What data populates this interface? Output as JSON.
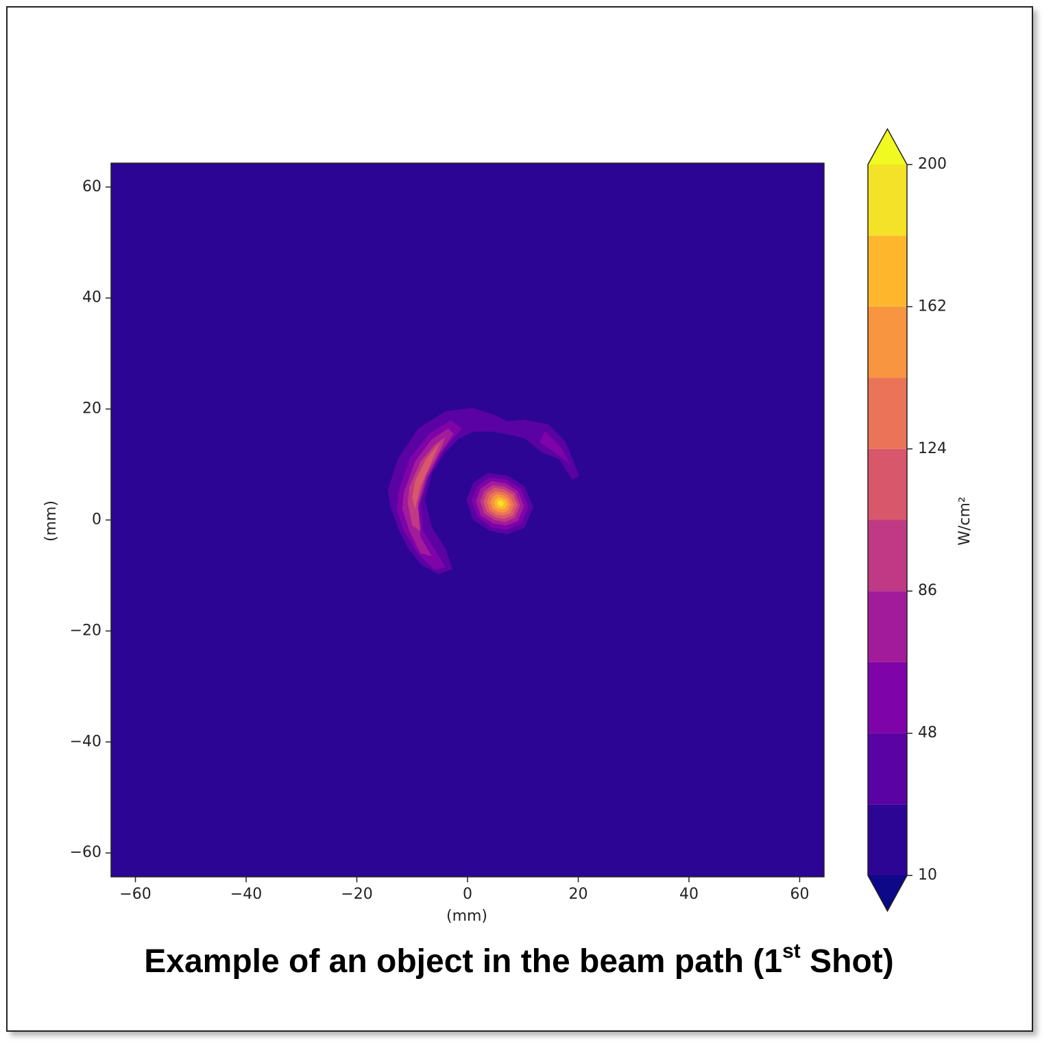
{
  "chart_data": {
    "type": "contour",
    "xlabel": "(mm)",
    "ylabel": "(mm)",
    "xlim": [
      -64.4,
      64.4
    ],
    "ylim": [
      -64.3,
      64.3
    ],
    "xticks": [
      {
        "value": -60,
        "label": "−60"
      },
      {
        "value": -40,
        "label": "−40"
      },
      {
        "value": -20,
        "label": "−20"
      },
      0,
      20,
      40,
      60
    ],
    "yticks": [
      {
        "value": -60,
        "label": "−60"
      },
      {
        "value": -40,
        "label": "−40"
      },
      {
        "value": -20,
        "label": "−20"
      },
      0,
      20,
      40,
      60
    ],
    "levels": [
      10,
      29,
      48,
      67,
      86,
      105,
      124,
      143,
      162,
      181,
      200
    ],
    "colors": [
      "#2c0594",
      "#5a02a3",
      "#7e03a8",
      "#a11b9b",
      "#bf3984",
      "#d8576b",
      "#ea7457",
      "#f89540",
      "#feb72d",
      "#f3e228"
    ],
    "under_color": "#0d0887",
    "over_color": "#f0f921",
    "colorbar_label": "W/cm²",
    "colorbar_ticks": [
      10,
      48,
      86,
      124,
      162,
      200
    ],
    "contours": [
      {
        "level": 29,
        "points": [
          [
            -14.4,
            5.4
          ],
          [
            -12.6,
            11.0
          ],
          [
            -8.9,
            16.5
          ],
          [
            -4.0,
            19.6
          ],
          [
            1.0,
            20.2
          ],
          [
            4.7,
            19.0
          ],
          [
            7.2,
            17.8
          ],
          [
            10.3,
            18.1
          ],
          [
            14.6,
            17.2
          ],
          [
            17.7,
            14.1
          ],
          [
            20.2,
            7.9
          ],
          [
            18.9,
            7.3
          ],
          [
            16.5,
            11.0
          ],
          [
            13.4,
            12.2
          ],
          [
            10.3,
            14.7
          ],
          [
            7.8,
            15.3
          ],
          [
            4.7,
            15.9
          ],
          [
            1.0,
            15.9
          ],
          [
            -1.5,
            14.7
          ],
          [
            -4.0,
            12.2
          ],
          [
            -6.4,
            8.5
          ],
          [
            -7.7,
            3.6
          ],
          [
            -6.4,
            -1.4
          ],
          [
            -4.0,
            -5.1
          ],
          [
            -2.7,
            -8.8
          ],
          [
            -5.2,
            -9.8
          ],
          [
            -8.3,
            -8.1
          ],
          [
            -10.8,
            -5.1
          ],
          [
            -12.6,
            -1.4
          ],
          [
            -13.9,
            2.3
          ]
        ]
      },
      {
        "level": 48,
        "points": [
          [
            -12.5,
            5
          ],
          [
            -10.5,
            11
          ],
          [
            -7,
            15.5
          ],
          [
            -3,
            18
          ],
          [
            -1,
            16.5
          ],
          [
            -4,
            13
          ],
          [
            -7,
            8
          ],
          [
            -8.5,
            3
          ],
          [
            -8,
            -2
          ],
          [
            -5.5,
            -6
          ],
          [
            -4,
            -8.5
          ],
          [
            -6,
            -9
          ],
          [
            -9,
            -6
          ],
          [
            -11.5,
            -2
          ],
          [
            -12.8,
            2
          ]
        ]
      },
      {
        "level": 48,
        "points": [
          [
            14,
            16
          ],
          [
            17,
            13
          ],
          [
            18.5,
            10
          ],
          [
            16,
            12
          ],
          [
            13,
            14
          ]
        ]
      },
      {
        "level": 67,
        "points": [
          [
            -11.5,
            5
          ],
          [
            -9.5,
            10.5
          ],
          [
            -6.5,
            14.5
          ],
          [
            -3.5,
            16.5
          ],
          [
            -2.5,
            15.5
          ],
          [
            -5,
            12
          ],
          [
            -7.5,
            7
          ],
          [
            -9,
            2
          ],
          [
            -8.5,
            -3
          ],
          [
            -6.5,
            -6.5
          ],
          [
            -8.5,
            -6
          ],
          [
            -10.5,
            -2
          ],
          [
            -11.8,
            2
          ]
        ]
      },
      {
        "level": 86,
        "points": [
          [
            -10.5,
            6
          ],
          [
            -8.5,
            10.5
          ],
          [
            -6,
            13.5
          ],
          [
            -4,
            15
          ],
          [
            -5,
            12.5
          ],
          [
            -7.5,
            8
          ],
          [
            -9,
            3
          ],
          [
            -8.5,
            -2
          ],
          [
            -10,
            -1
          ],
          [
            -10.8,
            3
          ]
        ]
      },
      {
        "level": 105,
        "points": [
          [
            -9.5,
            7
          ],
          [
            -7.5,
            11
          ],
          [
            -5,
            14
          ],
          [
            -6.5,
            10.5
          ],
          [
            -8.5,
            6
          ],
          [
            -9.5,
            2
          ],
          [
            -10,
            4
          ]
        ]
      },
      {
        "level": 29,
        "points": [
          [
            -0.2,
            3.6
          ],
          [
            1.0,
            6.7
          ],
          [
            3.7,
            8.5
          ],
          [
            7.2,
            8.0
          ],
          [
            10.3,
            6.1
          ],
          [
            11.9,
            2.3
          ],
          [
            10.3,
            -1.4
          ],
          [
            7.2,
            -2.6
          ],
          [
            4.1,
            -2.0
          ],
          [
            1.0,
            0.0
          ]
        ]
      },
      {
        "level": 48,
        "points": [
          [
            0.7,
            3.5
          ],
          [
            1.8,
            6.1
          ],
          [
            4.0,
            7.7
          ],
          [
            7.0,
            7.3
          ],
          [
            9.7,
            5.6
          ],
          [
            11.0,
            2.4
          ],
          [
            9.7,
            -0.7
          ],
          [
            7.0,
            -1.8
          ],
          [
            4.4,
            -1.3
          ],
          [
            1.8,
            0.5
          ]
        ]
      },
      {
        "level": 67,
        "points": [
          [
            1.5,
            3.4
          ],
          [
            2.4,
            5.7
          ],
          [
            4.3,
            7.0
          ],
          [
            6.9,
            6.6
          ],
          [
            9.1,
            5.2
          ],
          [
            10.2,
            2.5
          ],
          [
            9.1,
            -0.2
          ],
          [
            6.9,
            -1.0
          ],
          [
            4.6,
            -0.6
          ],
          [
            2.4,
            0.8
          ]
        ]
      },
      {
        "level": 86,
        "points": [
          [
            2.3,
            3.4
          ],
          [
            3.0,
            5.2
          ],
          [
            4.6,
            6.3
          ],
          [
            6.7,
            6.0
          ],
          [
            8.6,
            4.9
          ],
          [
            9.5,
            2.6
          ],
          [
            8.6,
            0.4
          ],
          [
            6.7,
            -0.4
          ],
          [
            4.9,
            0.0
          ],
          [
            3.0,
            1.2
          ]
        ]
      },
      {
        "level": 105,
        "points": [
          [
            2.9,
            3.3
          ],
          [
            3.5,
            4.9
          ],
          [
            4.9,
            5.8
          ],
          [
            6.6,
            5.5
          ],
          [
            8.2,
            4.6
          ],
          [
            9.0,
            2.7
          ],
          [
            8.2,
            0.8
          ],
          [
            6.6,
            0.2
          ],
          [
            5.1,
            0.5
          ],
          [
            3.5,
            1.5
          ]
        ]
      },
      {
        "level": 124,
        "points": [
          [
            3.5,
            3.2
          ],
          [
            4.0,
            4.5
          ],
          [
            5.1,
            5.2
          ],
          [
            6.5,
            5.0
          ],
          [
            7.7,
            4.2
          ],
          [
            8.4,
            2.7
          ],
          [
            7.7,
            1.2
          ],
          [
            6.5,
            0.8
          ],
          [
            5.2,
            1.0
          ],
          [
            4.0,
            1.8
          ]
        ]
      },
      {
        "level": 143,
        "points": [
          [
            4.1,
            3.2
          ],
          [
            4.5,
            4.1
          ],
          [
            5.3,
            4.7
          ],
          [
            6.4,
            4.5
          ],
          [
            7.3,
            3.9
          ],
          [
            7.8,
            2.8
          ],
          [
            7.3,
            1.7
          ],
          [
            6.4,
            1.3
          ],
          [
            5.4,
            1.5
          ],
          [
            4.5,
            2.1
          ]
        ]
      },
      {
        "level": 162,
        "points": [
          [
            4.8,
            3.1
          ],
          [
            5.0,
            3.7
          ],
          [
            5.5,
            4.1
          ],
          [
            6.2,
            4.0
          ],
          [
            6.9,
            3.6
          ],
          [
            7.2,
            2.9
          ],
          [
            6.9,
            2.1
          ],
          [
            6.2,
            1.9
          ],
          [
            5.6,
            2.0
          ],
          [
            5.0,
            2.4
          ]
        ]
      },
      {
        "level": 181,
        "points": [
          [
            5.4,
            3.1
          ],
          [
            5.5,
            3.4
          ],
          [
            5.8,
            3.6
          ],
          [
            6.1,
            3.5
          ],
          [
            6.4,
            3.3
          ],
          [
            6.6,
            2.9
          ],
          [
            6.4,
            2.6
          ],
          [
            6.1,
            2.4
          ],
          [
            5.8,
            2.5
          ],
          [
            5.5,
            2.7
          ]
        ]
      }
    ]
  },
  "caption": {
    "text": "Example of an object in the beam path (1",
    "sup": "st",
    "end": " Shot)"
  }
}
